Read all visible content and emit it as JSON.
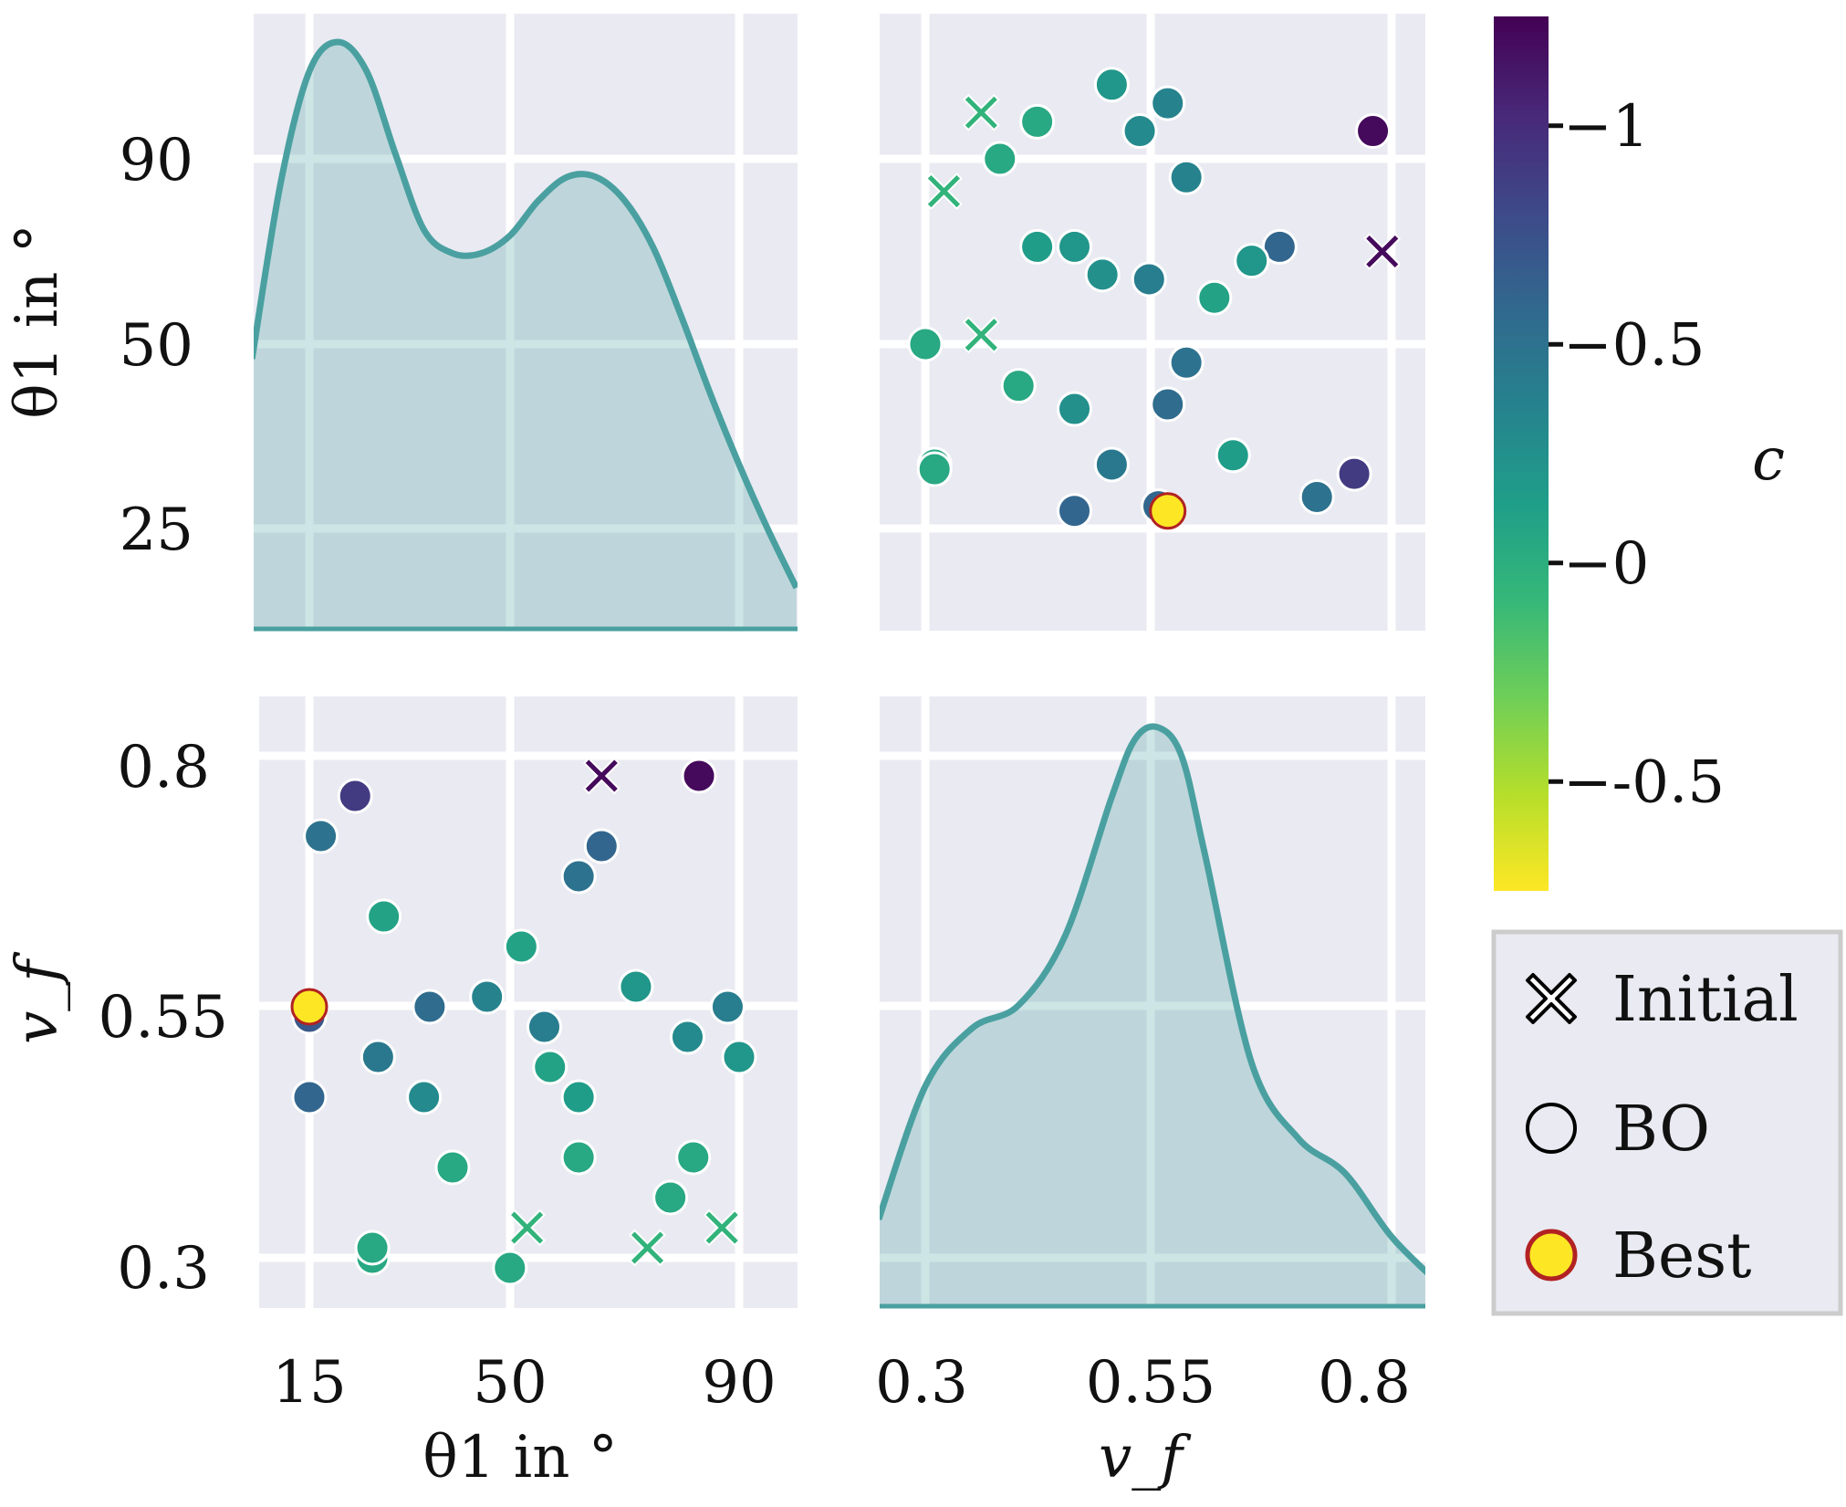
{
  "chart_data": [
    {
      "panel": "theta1-density",
      "type": "area",
      "xlabel": "θ1 in °",
      "ylabel": "θ1 in °",
      "x_ticks": [
        "15",
        "50",
        "90"
      ],
      "y_ticks": [
        "90",
        "50",
        "25"
      ],
      "x": [
        5,
        10,
        15,
        20,
        25,
        30,
        35,
        40,
        45,
        50,
        55,
        60,
        65,
        70,
        75,
        80,
        85,
        90,
        95,
        100
      ],
      "density": [
        0.46,
        0.76,
        0.95,
        1.0,
        0.95,
        0.81,
        0.68,
        0.64,
        0.64,
        0.67,
        0.73,
        0.77,
        0.77,
        0.73,
        0.65,
        0.53,
        0.4,
        0.28,
        0.17,
        0.07
      ]
    },
    {
      "panel": "vf-vs-theta1",
      "type": "scatter",
      "xlabel": "v_f",
      "ylabel": "θ1 in °",
      "x_ticks": [
        "0.3",
        "0.55",
        "0.8"
      ],
      "y_ticks": [
        "90",
        "50",
        "25"
      ],
      "points": [
        {
          "x": 0.36,
          "y": 100,
          "c": 0.05,
          "marker": "x"
        },
        {
          "x": 0.32,
          "y": 83,
          "c": 0.05,
          "marker": "x"
        },
        {
          "x": 0.36,
          "y": 52,
          "c": 0.05,
          "marker": "x"
        },
        {
          "x": 0.79,
          "y": 70,
          "c": -1.2,
          "marker": "x"
        },
        {
          "x": 0.5,
          "y": 106,
          "c": -0.2,
          "marker": "o"
        },
        {
          "x": 0.56,
          "y": 102,
          "c": -0.35,
          "marker": "o"
        },
        {
          "x": 0.42,
          "y": 98,
          "c": -0.05,
          "marker": "o"
        },
        {
          "x": 0.53,
          "y": 96,
          "c": -0.3,
          "marker": "o"
        },
        {
          "x": 0.38,
          "y": 90,
          "c": -0.05,
          "marker": "o"
        },
        {
          "x": 0.78,
          "y": 96,
          "c": -1.2,
          "marker": "o"
        },
        {
          "x": 0.58,
          "y": 86,
          "c": -0.35,
          "marker": "o"
        },
        {
          "x": 0.42,
          "y": 71,
          "c": -0.15,
          "marker": "o"
        },
        {
          "x": 0.46,
          "y": 71,
          "c": -0.2,
          "marker": "o"
        },
        {
          "x": 0.49,
          "y": 65,
          "c": -0.25,
          "marker": "o"
        },
        {
          "x": 0.54,
          "y": 64,
          "c": -0.4,
          "marker": "o"
        },
        {
          "x": 0.68,
          "y": 71,
          "c": -0.6,
          "marker": "o"
        },
        {
          "x": 0.65,
          "y": 68,
          "c": -0.2,
          "marker": "o"
        },
        {
          "x": 0.61,
          "y": 60,
          "c": -0.1,
          "marker": "o"
        },
        {
          "x": 0.3,
          "y": 50,
          "c": -0.05,
          "marker": "o"
        },
        {
          "x": 0.58,
          "y": 46,
          "c": -0.5,
          "marker": "o"
        },
        {
          "x": 0.4,
          "y": 41,
          "c": -0.05,
          "marker": "o"
        },
        {
          "x": 0.46,
          "y": 36,
          "c": -0.25,
          "marker": "o"
        },
        {
          "x": 0.56,
          "y": 37,
          "c": -0.55,
          "marker": "o"
        },
        {
          "x": 0.31,
          "y": 24,
          "c": -0.05,
          "marker": "o"
        },
        {
          "x": 0.31,
          "y": 23,
          "c": -0.05,
          "marker": "o"
        },
        {
          "x": 0.5,
          "y": 24,
          "c": -0.45,
          "marker": "o"
        },
        {
          "x": 0.63,
          "y": 26,
          "c": -0.15,
          "marker": "o"
        },
        {
          "x": 0.76,
          "y": 22,
          "c": -0.9,
          "marker": "o"
        },
        {
          "x": 0.72,
          "y": 17,
          "c": -0.5,
          "marker": "o"
        },
        {
          "x": 0.46,
          "y": 14,
          "c": -0.6,
          "marker": "o"
        },
        {
          "x": 0.55,
          "y": 15,
          "c": -0.6,
          "marker": "o"
        },
        {
          "x": 0.56,
          "y": 14,
          "c": -0.75,
          "marker": "best"
        }
      ]
    },
    {
      "panel": "theta1-vs-vf",
      "type": "scatter",
      "xlabel": "θ1 in °",
      "ylabel": "v_f",
      "x_ticks": [
        "15",
        "50",
        "90"
      ],
      "y_ticks": [
        "0.8",
        "0.55",
        "0.3"
      ],
      "points": [
        {
          "x": 66,
          "y": 0.78,
          "c": -1.2,
          "marker": "x"
        },
        {
          "x": 53,
          "y": 0.33,
          "c": 0.05,
          "marker": "x"
        },
        {
          "x": 74,
          "y": 0.31,
          "c": 0.05,
          "marker": "x"
        },
        {
          "x": 87,
          "y": 0.33,
          "c": 0.05,
          "marker": "x"
        },
        {
          "x": 83,
          "y": 0.78,
          "c": -1.2,
          "marker": "o"
        },
        {
          "x": 23,
          "y": 0.76,
          "c": -0.9,
          "marker": "o"
        },
        {
          "x": 17,
          "y": 0.72,
          "c": -0.5,
          "marker": "o"
        },
        {
          "x": 66,
          "y": 0.71,
          "c": -0.6,
          "marker": "o"
        },
        {
          "x": 62,
          "y": 0.68,
          "c": -0.5,
          "marker": "o"
        },
        {
          "x": 28,
          "y": 0.64,
          "c": -0.1,
          "marker": "o"
        },
        {
          "x": 52,
          "y": 0.61,
          "c": -0.1,
          "marker": "o"
        },
        {
          "x": 72,
          "y": 0.57,
          "c": -0.2,
          "marker": "o"
        },
        {
          "x": 46,
          "y": 0.56,
          "c": -0.35,
          "marker": "o"
        },
        {
          "x": 36,
          "y": 0.55,
          "c": -0.55,
          "marker": "o"
        },
        {
          "x": 56,
          "y": 0.53,
          "c": -0.4,
          "marker": "o"
        },
        {
          "x": 88,
          "y": 0.55,
          "c": -0.4,
          "marker": "o"
        },
        {
          "x": 81,
          "y": 0.52,
          "c": -0.3,
          "marker": "o"
        },
        {
          "x": 27,
          "y": 0.5,
          "c": -0.45,
          "marker": "o"
        },
        {
          "x": 57,
          "y": 0.49,
          "c": -0.1,
          "marker": "o"
        },
        {
          "x": 90,
          "y": 0.5,
          "c": -0.2,
          "marker": "o"
        },
        {
          "x": 35,
          "y": 0.46,
          "c": -0.3,
          "marker": "o"
        },
        {
          "x": 62,
          "y": 0.46,
          "c": -0.15,
          "marker": "o"
        },
        {
          "x": 15,
          "y": 0.46,
          "c": -0.6,
          "marker": "o"
        },
        {
          "x": 40,
          "y": 0.39,
          "c": -0.05,
          "marker": "o"
        },
        {
          "x": 62,
          "y": 0.4,
          "c": -0.05,
          "marker": "o"
        },
        {
          "x": 82,
          "y": 0.4,
          "c": -0.05,
          "marker": "o"
        },
        {
          "x": 78,
          "y": 0.36,
          "c": -0.05,
          "marker": "o"
        },
        {
          "x": 26,
          "y": 0.3,
          "c": -0.05,
          "marker": "o"
        },
        {
          "x": 26,
          "y": 0.31,
          "c": -0.05,
          "marker": "o"
        },
        {
          "x": 50,
          "y": 0.29,
          "c": -0.05,
          "marker": "o"
        },
        {
          "x": 15,
          "y": 0.54,
          "c": -0.7,
          "marker": "o"
        },
        {
          "x": 15,
          "y": 0.55,
          "c": -0.75,
          "marker": "best"
        }
      ]
    },
    {
      "panel": "vf-density",
      "type": "area",
      "xlabel": "v_f",
      "ylabel": "v_f",
      "x_ticks": [
        "0.3",
        "0.55",
        "0.8"
      ],
      "y_ticks": [
        "0.8",
        "0.55",
        "0.3"
      ],
      "x": [
        0.25,
        0.3,
        0.35,
        0.4,
        0.45,
        0.5,
        0.525,
        0.55,
        0.575,
        0.6,
        0.65,
        0.7,
        0.75,
        0.8,
        0.85
      ],
      "density": [
        0.15,
        0.38,
        0.48,
        0.52,
        0.64,
        0.88,
        0.98,
        1.0,
        0.95,
        0.78,
        0.42,
        0.29,
        0.23,
        0.12,
        0.04
      ]
    }
  ],
  "colorbar": {
    "label": "c",
    "ticks": [
      "−1",
      "−0.5",
      "−0",
      "−-0.5"
    ],
    "tick_values": [
      -1,
      -0.5,
      0,
      0.5
    ],
    "range": [
      -1.25,
      0.75
    ],
    "colormap": [
      "#fde725",
      "#b5de2b",
      "#6ece58",
      "#35b779",
      "#1f9e89",
      "#26828e",
      "#31688e",
      "#3e4989",
      "#482878",
      "#440154"
    ]
  },
  "legend": {
    "items": [
      {
        "label": "Initial",
        "marker": "x"
      },
      {
        "label": "BO",
        "marker": "o"
      },
      {
        "label": "Best",
        "marker": "best"
      }
    ]
  },
  "colors": {
    "panel_background": "#eaeaf2",
    "kde_line": "#4aa0a0",
    "kde_fill": "#c3d9de",
    "best_face": "#fde725",
    "best_edge": "#b22222"
  }
}
